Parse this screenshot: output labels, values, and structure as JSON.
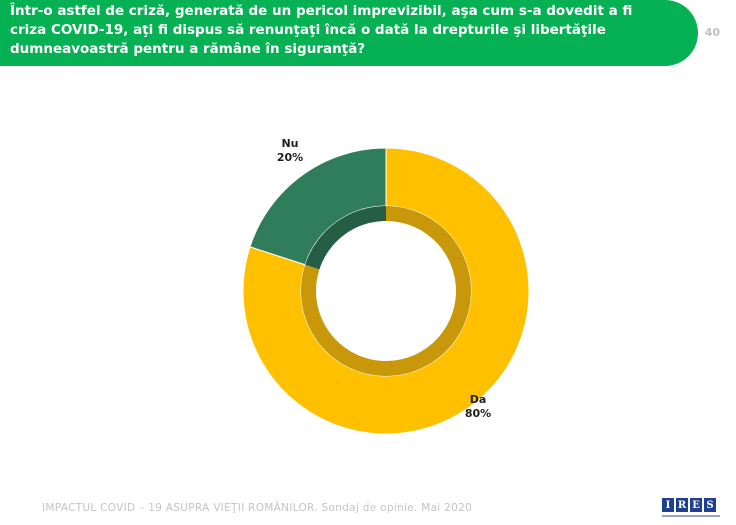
{
  "header": {
    "question": "Într-o astfel de criză, generată de un pericol imprevizibil, aşa cum s-a dovedit a fi criza COVID-19, aţi fi dispus să renunţaţi încă o dată la drepturile şi libertăţile dumneavoastră pentru a rămâne în siguranţă?",
    "page_number": "40"
  },
  "chart_data": {
    "type": "pie",
    "style": "donut",
    "categories": [
      "Da",
      "Nu"
    ],
    "values": [
      80,
      20
    ],
    "value_labels": [
      "80%",
      "20%"
    ],
    "colors": [
      "#ffc000",
      "#2f7d5a"
    ],
    "inner_ring_colors": [
      "#c9980a",
      "#245e45"
    ],
    "title": "",
    "legend": "none"
  },
  "footer": {
    "text": "IMPACTUL COVID – 19 ASUPRA VIEŢII ROMÂNILOR. Sondaj de opinie. Mai 2020"
  },
  "logo": {
    "letters": [
      "I",
      "R",
      "E",
      "S"
    ],
    "color": "#1f3f8f"
  },
  "colors": {
    "banner": "#05b153"
  }
}
